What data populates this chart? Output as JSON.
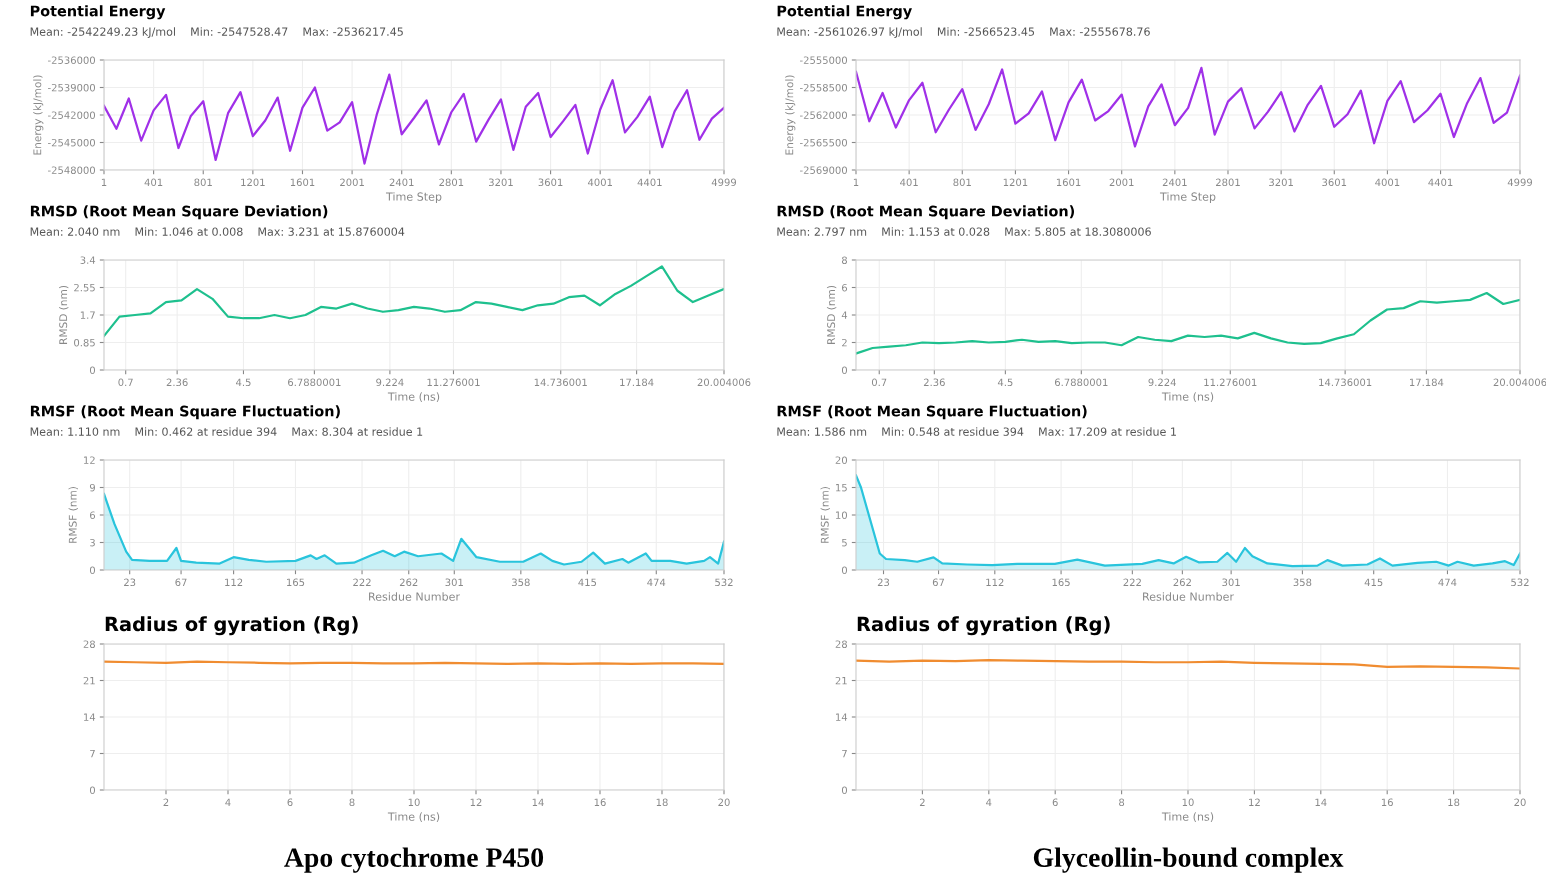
{
  "chart_data": [
    {
      "type": "line",
      "title": "Potential Energy",
      "subtitle": "Mean: -2542249.23 kJ/mol    Min: -2547528.47    Max: -2536217.45",
      "xlabel": "Time Step",
      "ylabel": "Energy (kJ/mol)",
      "xlim": [
        1,
        4999
      ],
      "ylim": [
        -2548000,
        -2536000
      ],
      "yticks": [
        -2548000,
        -2545000,
        -2542000,
        -2539000,
        -2536000
      ],
      "xticks": [
        1,
        401,
        801,
        1201,
        1601,
        2001,
        2401,
        2801,
        3201,
        3601,
        4001,
        4401,
        4999
      ],
      "grid": true,
      "line_style": "solid",
      "marker": "none",
      "x": [
        1,
        101,
        201,
        301,
        401,
        501,
        601,
        701,
        801,
        901,
        1001,
        1101,
        1201,
        1301,
        1401,
        1501,
        1601,
        1701,
        1801,
        1901,
        2001,
        2101,
        2201,
        2301,
        2401,
        2501,
        2601,
        2701,
        2801,
        2901,
        3001,
        3101,
        3201,
        3301,
        3401,
        3501,
        3601,
        3701,
        3801,
        3901,
        4001,
        4101,
        4201,
        4301,
        4401,
        4501,
        4601,
        4701,
        4801,
        4901,
        4999
      ],
      "series": [
        {
          "color": "#a030e8",
          "values": [
            -2541000,
            -2543500,
            -2540200,
            -2544800,
            -2541500,
            -2539800,
            -2545600,
            -2542100,
            -2540500,
            -2546900,
            -2541800,
            -2539500,
            -2544300,
            -2542600,
            -2540100,
            -2545900,
            -2541200,
            -2539000,
            -2543700,
            -2542800,
            -2540600,
            -2547300,
            -2541900,
            -2537600,
            -2544100,
            -2542300,
            -2540400,
            -2545200,
            -2541700,
            -2539700,
            -2544900,
            -2542500,
            -2540300,
            -2545800,
            -2541100,
            -2539600,
            -2544400,
            -2542700,
            -2540900,
            -2546200,
            -2541400,
            -2538200,
            -2543900,
            -2542200,
            -2540000,
            -2545500,
            -2541600,
            -2539300,
            -2544700,
            -2542400,
            -2541200
          ]
        }
      ]
    },
    {
      "type": "line",
      "title": "Potential Energy",
      "subtitle": "Mean: -2561026.97 kJ/mol    Min: -2566523.45    Max: -2555678.76",
      "xlabel": "Time Step",
      "ylabel": "Energy (kJ/mol)",
      "xlim": [
        1,
        4999
      ],
      "ylim": [
        -2569000,
        -2555000
      ],
      "yticks": [
        -2569000,
        -2565500,
        -2562000,
        -2558500,
        -2555000
      ],
      "xticks": [
        1,
        401,
        801,
        1201,
        1601,
        2001,
        2401,
        2801,
        3201,
        3601,
        4001,
        4401,
        4999
      ],
      "grid": true,
      "line_style": "solid",
      "marker": "none",
      "x": [
        1,
        101,
        201,
        301,
        401,
        501,
        601,
        701,
        801,
        901,
        1001,
        1101,
        1201,
        1301,
        1401,
        1501,
        1601,
        1701,
        1801,
        1901,
        2001,
        2101,
        2201,
        2301,
        2401,
        2501,
        2601,
        2701,
        2801,
        2901,
        3001,
        3101,
        3201,
        3301,
        3401,
        3501,
        3601,
        3701,
        3801,
        3901,
        4001,
        4101,
        4201,
        4301,
        4401,
        4501,
        4601,
        4701,
        4801,
        4901,
        4999
      ],
      "series": [
        {
          "color": "#a030e8",
          "values": [
            -2556500,
            -2562800,
            -2559200,
            -2563600,
            -2560100,
            -2557900,
            -2564200,
            -2561300,
            -2558700,
            -2563900,
            -2560600,
            -2556200,
            -2563100,
            -2561800,
            -2559000,
            -2565200,
            -2560400,
            -2557500,
            -2562700,
            -2561500,
            -2559400,
            -2566000,
            -2560900,
            -2558100,
            -2563300,
            -2561100,
            -2556000,
            -2564500,
            -2560300,
            -2558600,
            -2563700,
            -2561600,
            -2559100,
            -2564100,
            -2560700,
            -2558300,
            -2563500,
            -2561900,
            -2558900,
            -2565600,
            -2560200,
            -2557700,
            -2562900,
            -2561400,
            -2559300,
            -2564800,
            -2560500,
            -2557300,
            -2563000,
            -2561700,
            -2557000
          ]
        }
      ]
    },
    {
      "type": "line",
      "title": "RMSD (Root Mean Square Deviation)",
      "subtitle": "Mean: 2.040 nm    Min: 1.046 at 0.008    Max: 3.231 at 15.8760004",
      "xlabel": "Time (ns)",
      "ylabel": "RMSD (nm)",
      "xlim": [
        0,
        20.004006
      ],
      "ylim": [
        0,
        3.4
      ],
      "yticks": [
        0,
        0.85,
        1.7,
        2.55,
        3.4
      ],
      "xticks": [
        {
          "value": 0.7,
          "label": "0.7"
        },
        {
          "value": 2.36,
          "label": "2.36"
        },
        {
          "value": 4.5,
          "label": "4.5"
        },
        {
          "value": 6.7880001,
          "label": "6.7880001"
        },
        {
          "value": 9.224,
          "label": "9.224"
        },
        {
          "value": 11.276001,
          "label": "11.276001"
        },
        {
          "value": 14.736001,
          "label": "14.736001"
        },
        {
          "value": 17.184,
          "label": "17.184"
        },
        {
          "value": 20.004006,
          "label": "20.004006"
        }
      ],
      "grid": true,
      "line_style": "solid",
      "marker": "none",
      "x": [
        0,
        0.5,
        1,
        1.5,
        2,
        2.5,
        3,
        3.5,
        4,
        4.5,
        5,
        5.5,
        6,
        6.5,
        7,
        7.5,
        8,
        8.5,
        9,
        9.5,
        10,
        10.5,
        11,
        11.5,
        12,
        12.5,
        13,
        13.5,
        14,
        14.5,
        15,
        15.5,
        16,
        16.5,
        17,
        17.5,
        18,
        18.5,
        19,
        19.5,
        20
      ],
      "series": [
        {
          "color": "#1ec08e",
          "values": [
            1.05,
            1.65,
            1.7,
            1.75,
            2.1,
            2.15,
            2.5,
            2.2,
            1.65,
            1.6,
            1.6,
            1.7,
            1.6,
            1.7,
            1.95,
            1.9,
            2.05,
            1.9,
            1.8,
            1.85,
            1.95,
            1.9,
            1.8,
            1.85,
            2.1,
            2.05,
            1.95,
            1.85,
            2.0,
            2.05,
            2.25,
            2.3,
            2.0,
            2.35,
            2.6,
            2.9,
            3.2,
            2.45,
            2.1,
            2.3,
            2.5
          ]
        }
      ]
    },
    {
      "type": "line",
      "title": "RMSD (Root Mean Square Deviation)",
      "subtitle": "Mean: 2.797 nm    Min: 1.153 at 0.028    Max: 5.805 at 18.3080006",
      "xlabel": "Time (ns)",
      "ylabel": "RMSD (nm)",
      "xlim": [
        0,
        20.004006
      ],
      "ylim": [
        0,
        8
      ],
      "yticks": [
        0,
        2,
        4,
        6,
        8
      ],
      "xticks": [
        {
          "value": 0.7,
          "label": "0.7"
        },
        {
          "value": 2.36,
          "label": "2.36"
        },
        {
          "value": 4.5,
          "label": "4.5"
        },
        {
          "value": 6.7880001,
          "label": "6.7880001"
        },
        {
          "value": 9.224,
          "label": "9.224"
        },
        {
          "value": 11.276001,
          "label": "11.276001"
        },
        {
          "value": 14.736001,
          "label": "14.736001"
        },
        {
          "value": 17.184,
          "label": "17.184"
        },
        {
          "value": 20.004006,
          "label": "20.004006"
        }
      ],
      "grid": true,
      "line_style": "solid",
      "marker": "none",
      "x": [
        0,
        0.5,
        1,
        1.5,
        2,
        2.5,
        3,
        3.5,
        4,
        4.5,
        5,
        5.5,
        6,
        6.5,
        7,
        7.5,
        8,
        8.5,
        9,
        9.5,
        10,
        10.5,
        11,
        11.5,
        12,
        12.5,
        13,
        13.5,
        14,
        14.5,
        15,
        15.5,
        16,
        16.5,
        17,
        17.5,
        18,
        18.5,
        19,
        19.5,
        20
      ],
      "series": [
        {
          "color": "#1ec08e",
          "values": [
            1.2,
            1.6,
            1.7,
            1.8,
            2.0,
            1.95,
            2.0,
            2.1,
            2.0,
            2.05,
            2.2,
            2.05,
            2.1,
            1.95,
            2.0,
            2.0,
            1.8,
            2.4,
            2.2,
            2.1,
            2.5,
            2.4,
            2.5,
            2.3,
            2.7,
            2.3,
            2.0,
            1.9,
            1.95,
            2.3,
            2.6,
            3.6,
            4.4,
            4.5,
            5.0,
            4.9,
            5.0,
            5.1,
            5.6,
            4.8,
            5.1
          ]
        }
      ]
    },
    {
      "type": "area",
      "title": "RMSF (Root Mean Square Fluctuation)",
      "subtitle": "Mean: 1.110 nm    Min: 0.462 at residue 394    Max: 8.304 at residue 1",
      "xlabel": "Residue Number",
      "ylabel": "RMSF (nm)",
      "xlim": [
        1,
        532
      ],
      "ylim": [
        0,
        12
      ],
      "yticks": [
        0,
        3,
        6,
        9,
        12
      ],
      "xticks": [
        23,
        67,
        112,
        165,
        222,
        262,
        301,
        358,
        415,
        474,
        532
      ],
      "grid": true,
      "line_style": "solid",
      "marker": "none",
      "x": [
        1,
        10,
        20,
        25,
        40,
        55,
        63,
        67,
        80,
        100,
        112,
        125,
        140,
        165,
        178,
        183,
        190,
        200,
        215,
        230,
        240,
        250,
        258,
        270,
        290,
        300,
        307,
        320,
        340,
        360,
        375,
        385,
        395,
        410,
        420,
        430,
        445,
        450,
        465,
        470,
        480,
        486,
        500,
        515,
        520,
        527,
        532
      ],
      "series": [
        {
          "color": "#29c4dc",
          "values": [
            8.3,
            5,
            2,
            1.1,
            1.0,
            1.0,
            2.4,
            1.0,
            0.8,
            0.7,
            1.4,
            1.1,
            0.9,
            1.0,
            1.6,
            1.2,
            1.6,
            0.7,
            0.8,
            1.6,
            2.1,
            1.5,
            2.0,
            1.5,
            1.8,
            1.0,
            3.4,
            1.4,
            0.9,
            0.9,
            1.8,
            1.0,
            0.6,
            0.9,
            1.9,
            0.7,
            1.2,
            0.8,
            1.8,
            1.0,
            1.0,
            1.0,
            0.7,
            1.0,
            1.4,
            0.7,
            3.1
          ]
        }
      ]
    },
    {
      "type": "area",
      "title": "RMSF (Root Mean Square Fluctuation)",
      "subtitle": "Mean: 1.586 nm    Min: 0.548 at residue 394    Max: 17.209 at residue 1",
      "xlabel": "Residue Number",
      "ylabel": "RMSF (nm)",
      "xlim": [
        1,
        532
      ],
      "ylim": [
        0,
        20
      ],
      "yticks": [
        0,
        5,
        10,
        15,
        20
      ],
      "xticks": [
        23,
        67,
        112,
        165,
        222,
        262,
        301,
        358,
        415,
        474,
        532
      ],
      "grid": true,
      "line_style": "solid",
      "marker": "none",
      "x": [
        1,
        5,
        20,
        25,
        40,
        50,
        63,
        70,
        90,
        110,
        130,
        160,
        178,
        190,
        200,
        230,
        243,
        255,
        265,
        275,
        290,
        298,
        305,
        312,
        318,
        330,
        350,
        370,
        378,
        390,
        410,
        420,
        430,
        450,
        465,
        475,
        482,
        495,
        510,
        520,
        527,
        532
      ],
      "series": [
        {
          "color": "#29c4dc",
          "values": [
            17.2,
            15,
            3.0,
            2.0,
            1.8,
            1.5,
            2.3,
            1.2,
            1.0,
            0.9,
            1.1,
            1.1,
            1.9,
            1.3,
            0.8,
            1.1,
            1.8,
            1.2,
            2.4,
            1.4,
            1.5,
            3.1,
            1.5,
            4.0,
            2.5,
            1.2,
            0.7,
            0.8,
            1.8,
            0.8,
            1.0,
            2.1,
            0.8,
            1.3,
            1.5,
            0.8,
            1.5,
            0.8,
            1.2,
            1.6,
            0.9,
            3.0
          ]
        }
      ]
    },
    {
      "type": "line",
      "title": "Radius of gyration (Rg)",
      "xlabel": "Time (ns)",
      "xlim": [
        0,
        20
      ],
      "ylim": [
        0,
        28
      ],
      "yticks": [
        0,
        7,
        14,
        21,
        28
      ],
      "xticks": [
        2,
        4,
        6,
        8,
        10,
        12,
        14,
        16,
        18,
        20
      ],
      "grid": true,
      "line_style": "solid",
      "marker": "none",
      "annotations": [
        "Apo cytochrome P450"
      ],
      "x": [
        0,
        1,
        2,
        3,
        4,
        5,
        6,
        7,
        8,
        9,
        10,
        11,
        12,
        13,
        14,
        15,
        16,
        17,
        18,
        19,
        20
      ],
      "series": [
        {
          "color": "#f08c30",
          "values": [
            24.6,
            24.5,
            24.4,
            24.6,
            24.5,
            24.4,
            24.3,
            24.4,
            24.4,
            24.3,
            24.3,
            24.4,
            24.3,
            24.2,
            24.3,
            24.2,
            24.3,
            24.2,
            24.3,
            24.3,
            24.2
          ]
        }
      ]
    },
    {
      "type": "line",
      "title": "Radius of gyration (Rg)",
      "xlabel": "Time (ns)",
      "xlim": [
        0,
        20
      ],
      "ylim": [
        0,
        28
      ],
      "yticks": [
        0,
        7,
        14,
        21,
        28
      ],
      "xticks": [
        2,
        4,
        6,
        8,
        10,
        12,
        14,
        16,
        18,
        20
      ],
      "grid": true,
      "line_style": "solid",
      "marker": "none",
      "annotations": [
        "Glyceollin-bound complex"
      ],
      "x": [
        0,
        1,
        2,
        3,
        4,
        5,
        6,
        7,
        8,
        9,
        10,
        11,
        12,
        13,
        14,
        15,
        16,
        17,
        18,
        19,
        20
      ],
      "series": [
        {
          "color": "#f08c30",
          "values": [
            24.8,
            24.6,
            24.8,
            24.7,
            24.9,
            24.8,
            24.7,
            24.6,
            24.6,
            24.5,
            24.5,
            24.6,
            24.4,
            24.3,
            24.2,
            24.1,
            23.6,
            23.7,
            23.6,
            23.5,
            23.3
          ]
        }
      ]
    }
  ]
}
